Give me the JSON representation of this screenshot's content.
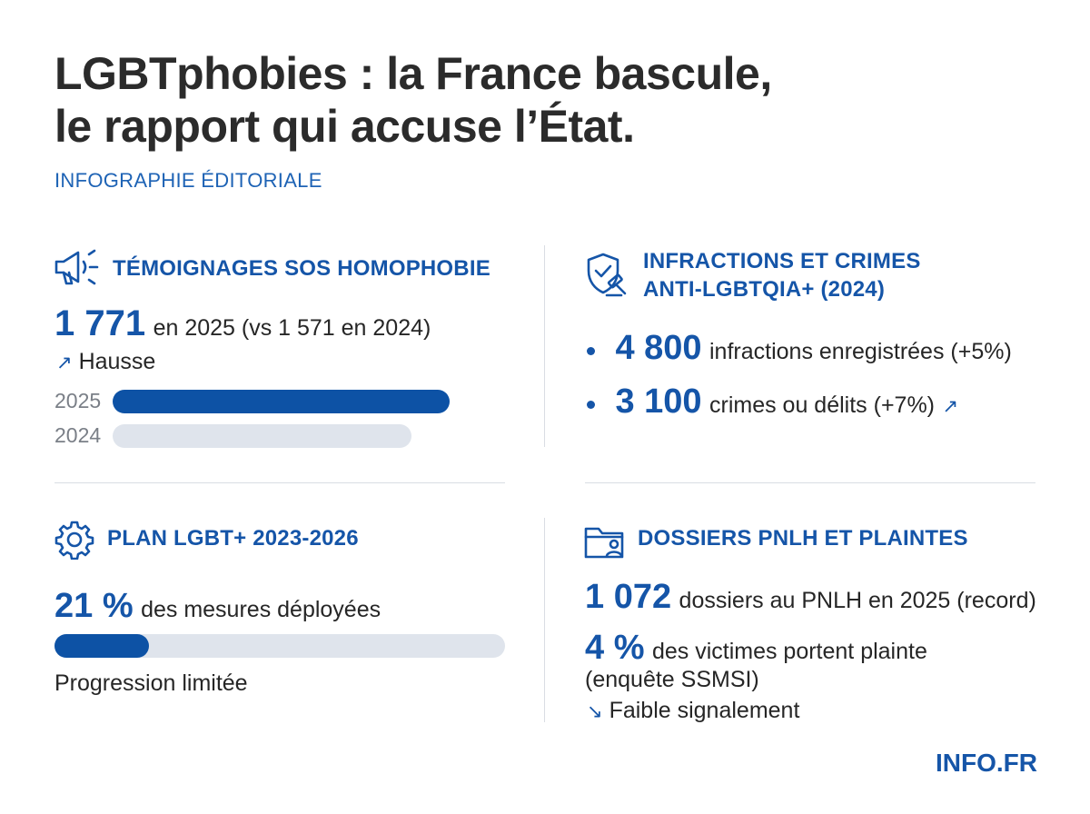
{
  "header": {
    "title_line1": "LGBTphobies : la France bascule,",
    "title_line2": "le rapport qui accuse l’État.",
    "subtitle": "INFOGRAPHIE ÉDITORIALE"
  },
  "sos": {
    "title": "TÉMOIGNAGES SOS HOMOPHOBIE",
    "value": "1 771",
    "value_text": "en 2025 (vs 1 571 en 2024)",
    "trend_arrow": "↗",
    "trend_text": "Hausse",
    "icon": "megaphone-icon"
  },
  "infractions": {
    "title_line1": "INFRACTIONS ET CRIMES",
    "title_line2": "ANTI-LGBTQIA+ (2024)",
    "item1_value": "4 800",
    "item1_text": "infractions enregistrées (+5%)",
    "item2_value": "3 100",
    "item2_text": "crimes ou délits (+7%)",
    "item2_arrow": "↗",
    "icon": "shield-gavel-icon"
  },
  "plan": {
    "title": "PLAN LGBT+ 2023-2026",
    "value": "21 %",
    "value_text": "des mesures déployées",
    "note": "Progression limitée",
    "icon": "gear-icon"
  },
  "dossiers": {
    "title": "DOSSIERS PNLH ET PLAINTES",
    "item1_value": "1 072",
    "item1_text": "dossiers au PNLH en 2025 (record)",
    "item2_value": "4 %",
    "item2_text": "des victimes portent plainte",
    "item2_text2": "(enquête SSMSI)",
    "trend_arrow": "↘",
    "trend_text": "Faible signalement",
    "icon": "folder-person-icon"
  },
  "footer": {
    "brand": "INFO.FR"
  },
  "colors": {
    "accent": "#1555a8",
    "bar_fill": "#0d52a5",
    "bar_track": "#dfe4ec"
  },
  "chart_data": [
    {
      "type": "bar",
      "categories": [
        "2025",
        "2024"
      ],
      "values": [
        1771,
        1571
      ],
      "highlight": "2025",
      "orientation": "horizontal"
    },
    {
      "type": "bar",
      "categories": [
        ""
      ],
      "values": [
        21
      ],
      "ylim": [
        0,
        100
      ],
      "orientation": "horizontal"
    }
  ]
}
